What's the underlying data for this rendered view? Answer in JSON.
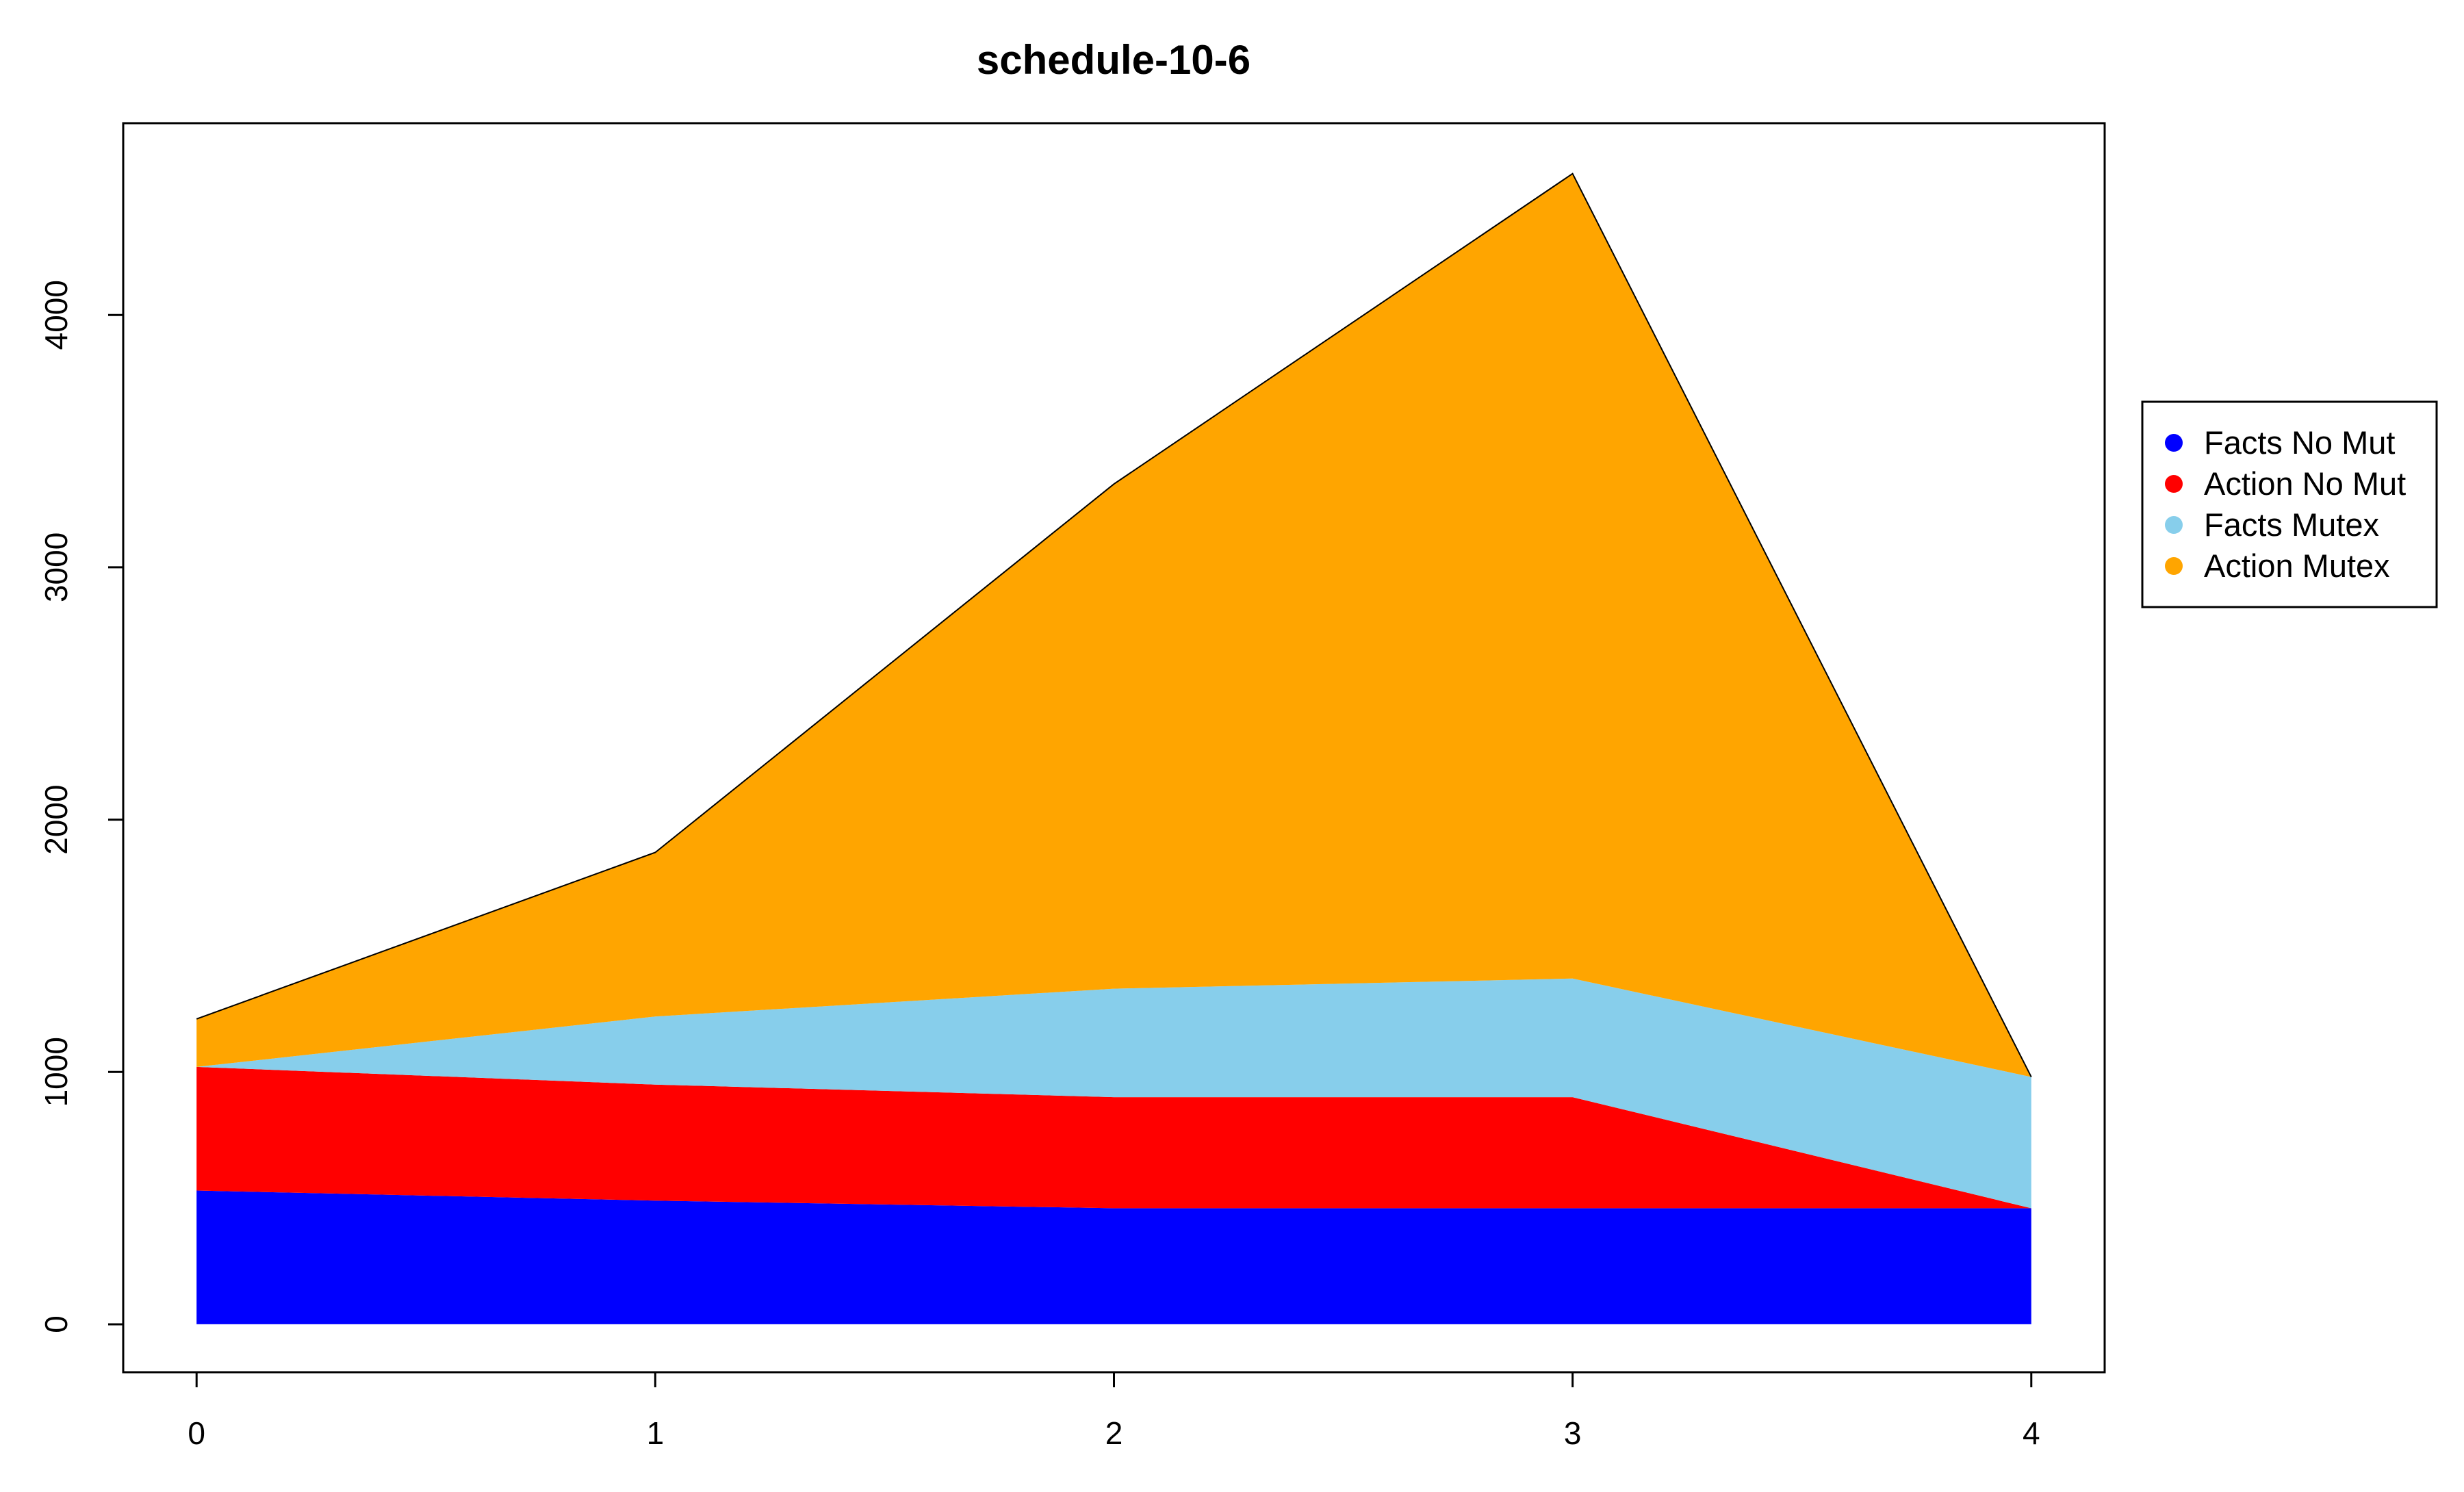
{
  "chart_data": {
    "type": "area",
    "stacked": true,
    "title": "schedule-10-6",
    "xlabel": "",
    "ylabel": "",
    "x": [
      0,
      1,
      2,
      3,
      4
    ],
    "xticks": [
      0,
      1,
      2,
      3,
      4
    ],
    "yticks": [
      0,
      1000,
      2000,
      3000,
      4000
    ],
    "xlim": [
      -0.16,
      4.16
    ],
    "ylim": [
      -190,
      4760
    ],
    "grid": false,
    "legend_position": "right",
    "series": [
      {
        "name": "Facts No Mut",
        "color": "#0000FF",
        "values": [
          530,
          490,
          460,
          460,
          460
        ]
      },
      {
        "name": "Action No Mut",
        "color": "#FF0000",
        "values": [
          490,
          460,
          440,
          440,
          0
        ]
      },
      {
        "name": "Facts Mutex",
        "color": "#87CEEB",
        "values": [
          0,
          270,
          430,
          470,
          520
        ]
      },
      {
        "name": "Action Mutex",
        "color": "#FFA500",
        "values": [
          190,
          650,
          2000,
          3190,
          0
        ]
      }
    ]
  }
}
